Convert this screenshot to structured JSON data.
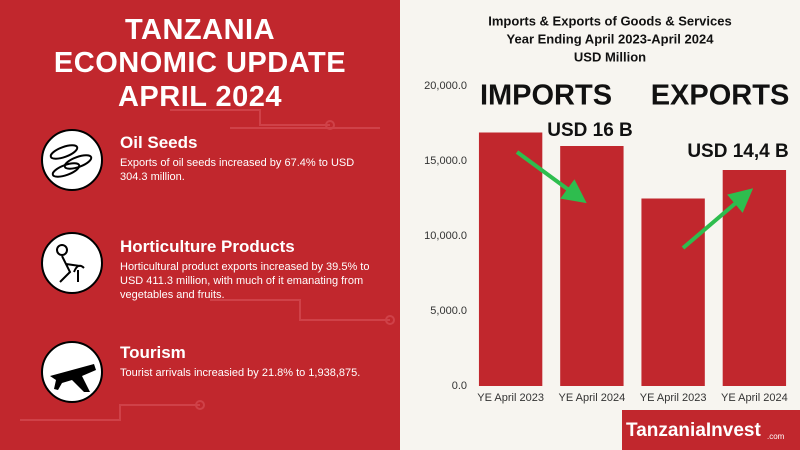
{
  "header": {
    "title_lines": [
      "TANZANIA",
      "ECONOMIC UPDATE",
      "APRIL 2024"
    ]
  },
  "items": [
    {
      "heading": "Oil Seeds",
      "text": "Exports of oil seeds increased by 67.4% to USD 304.3 million."
    },
    {
      "heading": "Horticulture Products",
      "text": "Horticultural product exports increased by 39.5% to USD 411.3 million, with much of it emanating from vegetables and fruits."
    },
    {
      "heading": "Tourism",
      "text": "Tourist arrivals increasied by 21.8% to 1,938,875."
    }
  ],
  "logo": {
    "name": "TanzaniaInvest",
    "suffix": ".com"
  },
  "chart_data": {
    "type": "bar",
    "title": [
      "Imports & Exports of Goods & Services",
      "Year Ending April 2023-April 2024",
      "USD Million"
    ],
    "categories": [
      "YE April 2023",
      "YE April 2024",
      "YE April 2023",
      "YE April 2024"
    ],
    "values": [
      16900,
      16000,
      12500,
      14400
    ],
    "color": "#c1272d",
    "ylim": [
      0,
      20000
    ],
    "yticks": [
      {
        "value": 0,
        "label": "0.0"
      },
      {
        "value": 5000,
        "label": "5,000.0"
      },
      {
        "value": 10000,
        "label": "10,000.0"
      },
      {
        "value": 15000,
        "label": "15,000.0"
      },
      {
        "value": 20000,
        "label": "20,000.0"
      }
    ],
    "grid": false,
    "annotations": [
      "IMPORTS",
      "EXPORTS",
      "USD 16 B",
      "USD 14,4 B"
    ]
  }
}
